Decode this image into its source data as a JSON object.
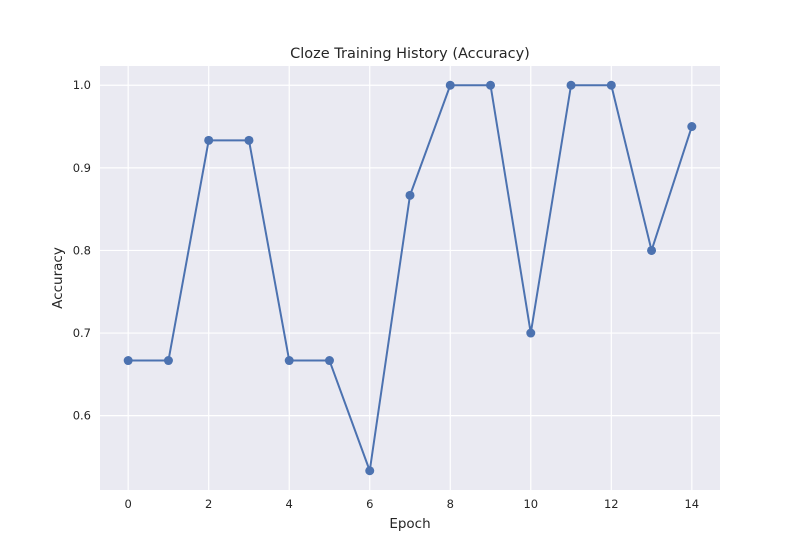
{
  "chart_data": {
    "type": "line",
    "title": "Cloze Training History (Accuracy)",
    "xlabel": "Epoch",
    "ylabel": "Accuracy",
    "x": [
      0,
      1,
      2,
      3,
      4,
      5,
      6,
      7,
      8,
      9,
      10,
      11,
      12,
      13,
      14
    ],
    "series": [
      {
        "values": [
          0.6667,
          0.6667,
          0.9333,
          0.9333,
          0.6667,
          0.6667,
          0.5333,
          0.8667,
          1.0,
          1.0,
          0.7,
          1.0,
          1.0,
          0.8,
          0.95
        ]
      }
    ],
    "xticks": [
      0,
      2,
      4,
      6,
      8,
      10,
      12,
      14
    ],
    "yticks": [
      0.6,
      0.7,
      0.8,
      0.9,
      1.0
    ],
    "xtick_labels": [
      "0",
      "2",
      "4",
      "6",
      "8",
      "10",
      "12",
      "14"
    ],
    "ytick_labels": [
      "0.6",
      "0.7",
      "0.8",
      "0.9",
      "1.0"
    ],
    "xlim": [
      -0.7,
      14.7
    ],
    "ylim": [
      0.51,
      1.0233
    ],
    "grid": true,
    "colors": {
      "line": "#4c72b0",
      "plot_background": "#eaeaf2",
      "grid": "#ffffff",
      "text": "#262626"
    }
  }
}
